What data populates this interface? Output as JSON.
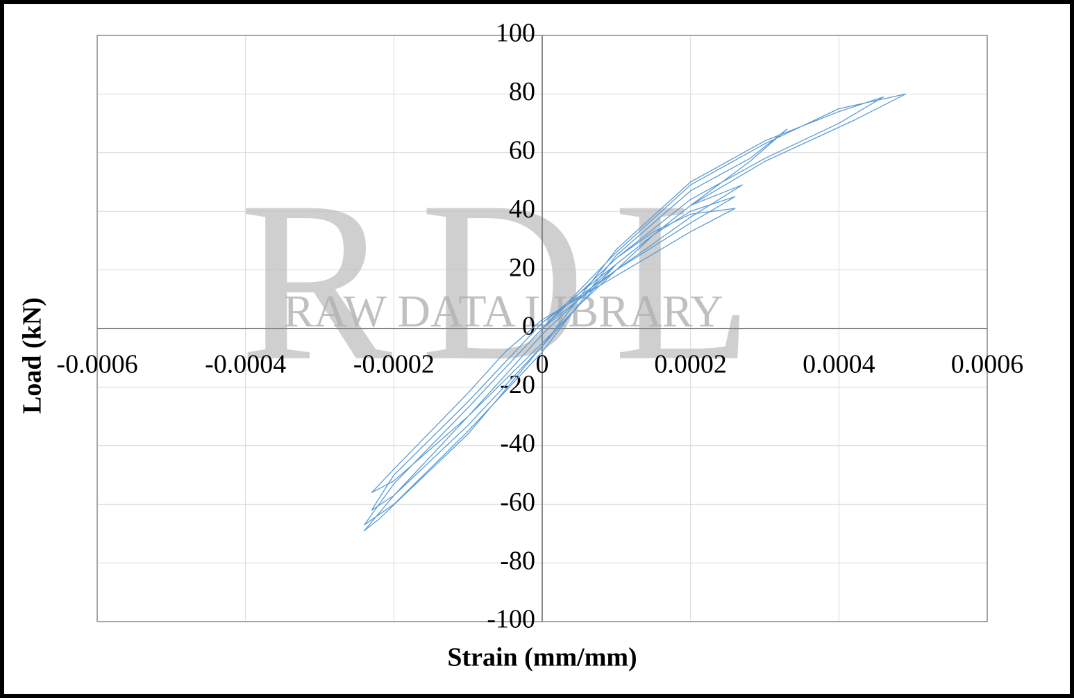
{
  "chart_data": {
    "type": "line",
    "xlabel": "Strain (mm/mm)",
    "ylabel": "Load (kN)",
    "watermark": {
      "logo": "RDL",
      "text": "RAW DATA LIBRARY"
    },
    "xlim": [
      -0.0006,
      0.0006
    ],
    "xticks": [
      -0.0006,
      -0.0004,
      -0.0002,
      0,
      0.0002,
      0.0004,
      0.0006
    ],
    "ylim": [
      -100,
      100
    ],
    "yticks": [
      -100,
      -80,
      -60,
      -40,
      -20,
      0,
      20,
      40,
      60,
      80,
      100
    ],
    "grid": true,
    "x": [
      0,
      5e-05,
      0.0001,
      0.00015,
      0.0002,
      0.00026,
      0.0002,
      0.0001,
      0,
      -5e-05,
      -0.0001,
      -0.00015,
      -0.0002,
      -0.00023,
      -0.0002,
      -0.0001,
      0,
      5e-05,
      0.0001,
      0.00015,
      0.0002,
      0.00026,
      0.0002,
      0.0001,
      0,
      -0.0001,
      -0.0002,
      -0.00023,
      -0.0002,
      -0.0001,
      0,
      0.0001,
      0.0002,
      0.00027,
      0.0002,
      0.0001,
      0,
      -0.0001,
      -0.0002,
      -0.00024,
      -0.0002,
      -0.0001,
      0,
      0.0001,
      0.0002,
      0.00028,
      0.00033,
      0.00028,
      0.0002,
      0.0001,
      0,
      -0.0001,
      -0.0002,
      -0.00024,
      -0.00022,
      -0.0001,
      0,
      0.0001,
      0.0002,
      0.0003,
      0.0004,
      0.00046,
      0.0004,
      0.0003,
      0.0002,
      0.0001,
      0,
      0.0001,
      0.0002,
      0.0003,
      0.0004,
      0.00049,
      0.00042,
      0.0003,
      0.0002,
      0.0001,
      0
    ],
    "series": [
      {
        "color": "#5b9bd5",
        "values": [
          0,
          12,
          24,
          33,
          39,
          41,
          33,
          18,
          3,
          -8,
          -22,
          -35,
          -48,
          -56,
          -52,
          -30,
          -5,
          8,
          20,
          32,
          40,
          45,
          36,
          20,
          2,
          -25,
          -50,
          -62,
          -57,
          -33,
          -6,
          22,
          42,
          49,
          38,
          20,
          0,
          -27,
          -53,
          -67,
          -60,
          -35,
          -8,
          25,
          47,
          58,
          68,
          57,
          42,
          22,
          -2,
          -30,
          -57,
          -69,
          -65,
          -36,
          -6,
          27,
          50,
          64,
          74,
          79,
          70,
          58,
          44,
          24,
          0,
          26,
          49,
          63,
          75,
          80,
          71,
          57,
          42,
          22,
          2
        ]
      }
    ]
  }
}
